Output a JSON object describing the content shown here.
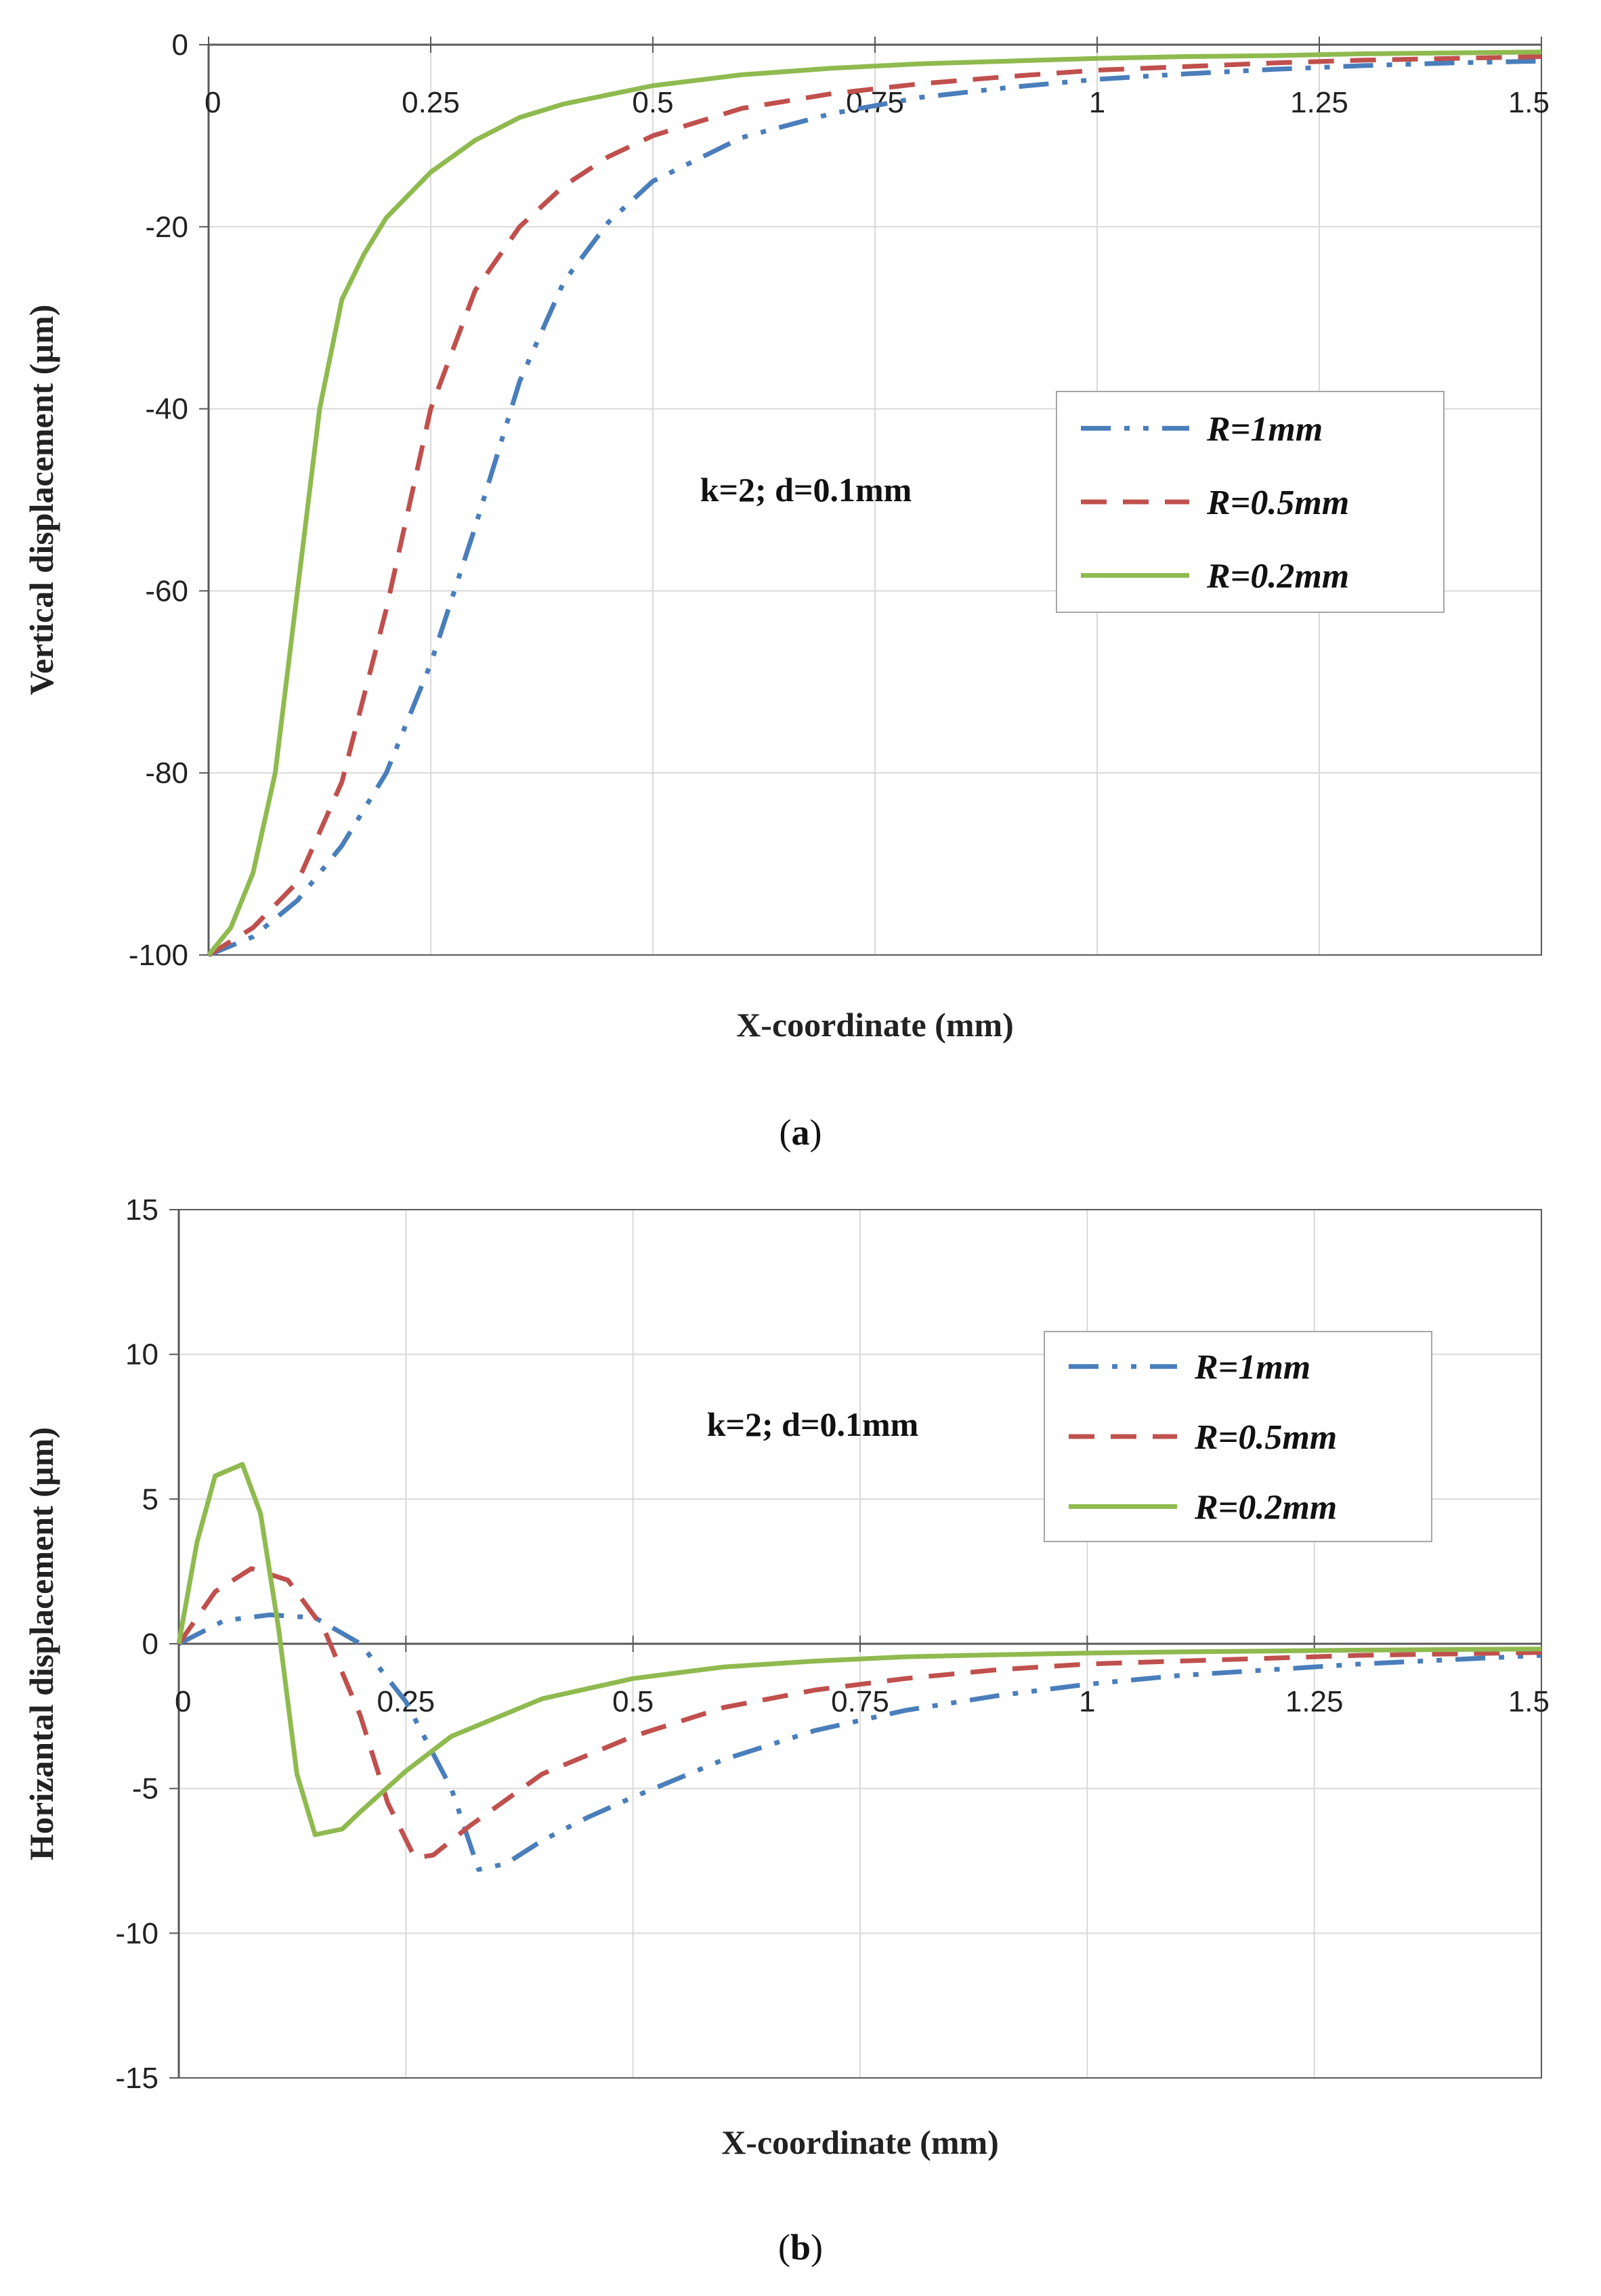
{
  "chart_data": [
    {
      "type": "line",
      "panel": "a",
      "caption_letter": "a",
      "xlabel": "X-coordinate (mm)",
      "ylabel": "Vertical displacement (µm)",
      "xlim": [
        0,
        1.5
      ],
      "ylim": [
        -100,
        0
      ],
      "xticks": [
        0,
        0.25,
        0.5,
        0.75,
        1,
        1.25,
        1.5
      ],
      "xtick_labels": [
        "0",
        "0.25",
        "0.5",
        "0.75",
        "1",
        "1.25",
        "1.5"
      ],
      "yticks": [
        0,
        -20,
        -40,
        -60,
        -80,
        -100
      ],
      "ytick_labels": [
        "0",
        "-20",
        "-40",
        "-60",
        "-80",
        "-100"
      ],
      "grid": true,
      "annotation": "k=2; d=0.1mm",
      "legend_position": "right-middle",
      "series": [
        {
          "name": "R=1mm",
          "color": "#4a7ebb",
          "dash": "dash-dot-dot",
          "x": [
            0,
            0.05,
            0.1,
            0.15,
            0.2,
            0.25,
            0.3,
            0.35,
            0.4,
            0.45,
            0.5,
            0.6,
            0.7,
            0.8,
            0.9,
            1.0,
            1.1,
            1.2,
            1.3,
            1.4,
            1.5
          ],
          "y": [
            -100,
            -98,
            -94,
            -88,
            -80,
            -68,
            -53,
            -37,
            -26,
            -19.5,
            -15,
            -10.2,
            -7.6,
            -5.8,
            -4.7,
            -3.8,
            -3.2,
            -2.7,
            -2.3,
            -2.0,
            -1.8
          ]
        },
        {
          "name": "R=0.5mm",
          "color": "#c0504d",
          "dash": "dash",
          "x": [
            0,
            0.05,
            0.1,
            0.15,
            0.2,
            0.25,
            0.3,
            0.35,
            0.4,
            0.45,
            0.5,
            0.6,
            0.7,
            0.8,
            0.9,
            1.0,
            1.1,
            1.2,
            1.3,
            1.4,
            1.5
          ],
          "y": [
            -100,
            -97,
            -92,
            -81,
            -62,
            -40,
            -27,
            -20,
            -15.5,
            -12.3,
            -10,
            -7,
            -5.4,
            -4.3,
            -3.5,
            -2.8,
            -2.4,
            -2.0,
            -1.7,
            -1.5,
            -1.3
          ]
        },
        {
          "name": "R=0.2mm",
          "color": "#8fba4f",
          "dash": "solid",
          "x": [
            0,
            0.025,
            0.05,
            0.075,
            0.1,
            0.125,
            0.15,
            0.175,
            0.2,
            0.25,
            0.3,
            0.35,
            0.4,
            0.5,
            0.6,
            0.7,
            0.8,
            0.9,
            1.0,
            1.1,
            1.2,
            1.3,
            1.4,
            1.5
          ],
          "y": [
            -100,
            -97,
            -91,
            -80,
            -60,
            -40,
            -28,
            -23,
            -19,
            -14,
            -10.5,
            -8,
            -6.5,
            -4.5,
            -3.3,
            -2.6,
            -2.1,
            -1.8,
            -1.5,
            -1.3,
            -1.2,
            -1.0,
            -0.9,
            -0.8
          ]
        }
      ]
    },
    {
      "type": "line",
      "panel": "b",
      "caption_letter": "b",
      "xlabel": "X-coordinate (mm)",
      "ylabel": "Horizantal displacement (µm)",
      "xlim": [
        0,
        1.5
      ],
      "ylim": [
        -15,
        15
      ],
      "xticks": [
        0,
        0.25,
        0.5,
        0.75,
        1,
        1.25,
        1.5
      ],
      "xtick_labels": [
        "0",
        "0.25",
        "0.5",
        "0.75",
        "1",
        "1.25",
        "1.5"
      ],
      "yticks": [
        15,
        10,
        5,
        0,
        -5,
        -10,
        -15
      ],
      "ytick_labels": [
        "15",
        "10",
        "5",
        "0",
        "-5",
        "-10",
        "-15"
      ],
      "grid": true,
      "annotation": "k=2; d=0.1mm",
      "legend_position": "top-right",
      "series": [
        {
          "name": "R=1mm",
          "color": "#4a7ebb",
          "dash": "dash-dot-dot",
          "x": [
            0,
            0.05,
            0.1,
            0.15,
            0.2,
            0.25,
            0.3,
            0.33,
            0.36,
            0.4,
            0.45,
            0.5,
            0.6,
            0.7,
            0.8,
            0.9,
            1.0,
            1.1,
            1.2,
            1.3,
            1.4,
            1.5
          ],
          "y": [
            0,
            0.8,
            1.0,
            0.9,
            0,
            -2,
            -5,
            -7.8,
            -7.6,
            -6.8,
            -6,
            -5.3,
            -4,
            -3,
            -2.3,
            -1.8,
            -1.4,
            -1.1,
            -0.9,
            -0.7,
            -0.55,
            -0.4
          ]
        },
        {
          "name": "R=0.5mm",
          "color": "#c0504d",
          "dash": "dash",
          "x": [
            0,
            0.04,
            0.08,
            0.12,
            0.16,
            0.2,
            0.23,
            0.26,
            0.28,
            0.32,
            0.4,
            0.5,
            0.6,
            0.7,
            0.8,
            0.9,
            1.0,
            1.1,
            1.2,
            1.3,
            1.4,
            1.5
          ],
          "y": [
            0,
            1.8,
            2.6,
            2.2,
            0.5,
            -2.5,
            -5.5,
            -7.4,
            -7.3,
            -6.3,
            -4.5,
            -3.2,
            -2.2,
            -1.6,
            -1.2,
            -0.9,
            -0.7,
            -0.6,
            -0.5,
            -0.4,
            -0.35,
            -0.3
          ]
        },
        {
          "name": "R=0.2mm",
          "color": "#8fba4f",
          "dash": "solid",
          "x": [
            0,
            0.02,
            0.04,
            0.07,
            0.09,
            0.11,
            0.13,
            0.15,
            0.18,
            0.2,
            0.25,
            0.3,
            0.4,
            0.5,
            0.6,
            0.7,
            0.8,
            0.9,
            1.0,
            1.1,
            1.2,
            1.3,
            1.4,
            1.5
          ],
          "y": [
            0,
            3.5,
            5.8,
            6.2,
            4.5,
            0.5,
            -4.5,
            -6.6,
            -6.4,
            -5.8,
            -4.4,
            -3.2,
            -1.9,
            -1.2,
            -0.8,
            -0.6,
            -0.45,
            -0.38,
            -0.32,
            -0.28,
            -0.25,
            -0.22,
            -0.2,
            -0.18
          ]
        }
      ]
    }
  ]
}
